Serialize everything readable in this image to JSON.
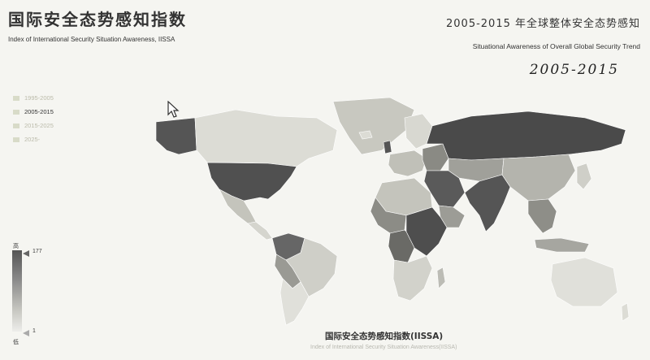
{
  "header": {
    "title_cn": "国际安全态势感知指数",
    "title_en": "Index of International Security Situation Awareness, IISSA",
    "trend_cn": "2005-2015 年全球整体安全态势感知",
    "trend_en": "Situational Awareness of Overall Global Security Trend",
    "years": "2005-2015"
  },
  "legend": {
    "items": [
      {
        "label": "1995-2005",
        "active": false
      },
      {
        "label": "2005-2015",
        "active": true
      },
      {
        "label": "2015-2025",
        "active": false
      },
      {
        "label": "2025-",
        "active": false
      }
    ]
  },
  "scale": {
    "high_label": "高",
    "low_label": "低",
    "max": "177",
    "min": "1"
  },
  "footer": {
    "title_cn": "国际安全态势感知指数(IISSA)",
    "title_en": "Index of International Security Situation Awareness(IISSA)"
  },
  "colors": {
    "background": "#f5f5f1",
    "land_light": "#e2e2dc",
    "land_mid": "#bdbdb5",
    "land_dark": "#4a4a4a"
  }
}
